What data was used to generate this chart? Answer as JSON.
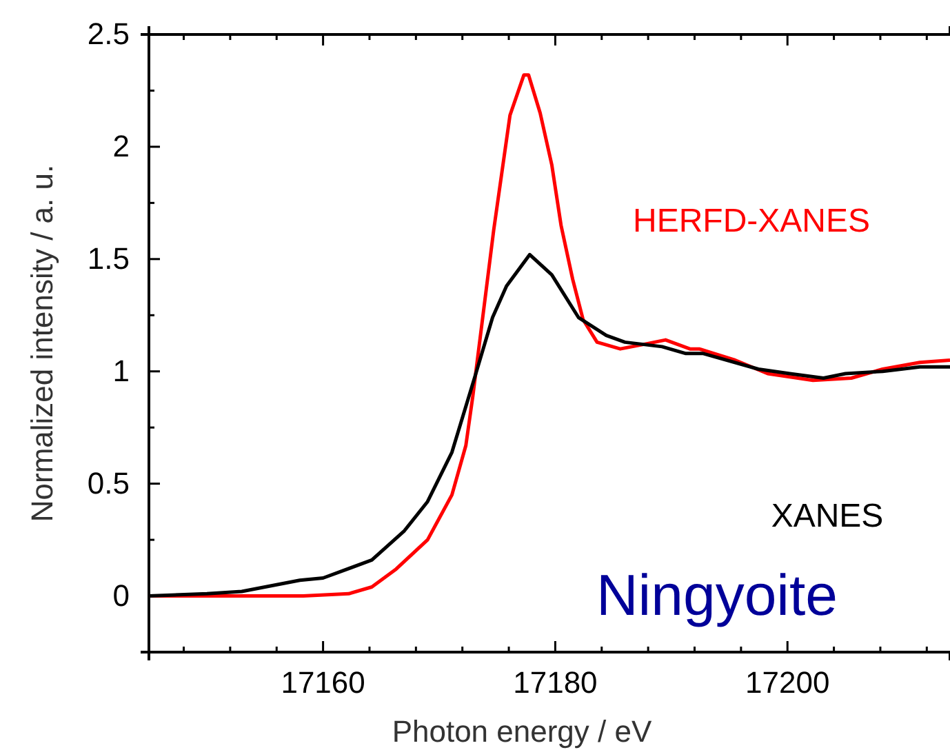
{
  "chart_data": {
    "type": "line",
    "xlabel": "Photon energy / eV",
    "ylabel": "Normalized intensity / a. u.",
    "xlim": [
      17145,
      17214
    ],
    "ylim": [
      -0.25,
      2.5
    ],
    "xticks": [
      {
        "value": 17148,
        "label": null
      },
      {
        "value": 17152,
        "label": null
      },
      {
        "value": 17156,
        "label": null
      },
      17160,
      {
        "value": 17164,
        "label": null
      },
      {
        "value": 17168,
        "label": null
      },
      {
        "value": 17172,
        "label": null
      },
      {
        "value": 17176,
        "label": null
      },
      17180,
      {
        "value": 17184,
        "label": null
      },
      {
        "value": 17188,
        "label": null
      },
      {
        "value": 17192,
        "label": null
      },
      {
        "value": 17196,
        "label": null
      },
      17200,
      {
        "value": 17204,
        "label": null
      },
      {
        "value": 17208,
        "label": null
      },
      {
        "value": 17212,
        "label": null
      }
    ],
    "yticks": [
      {
        "value": -0.25,
        "label": null
      },
      0,
      {
        "value": 0.25,
        "label": null
      },
      0.5,
      {
        "value": 0.75,
        "label": null
      },
      1,
      {
        "value": 1.25,
        "label": null
      },
      1.5,
      {
        "value": 1.75,
        "label": null
      },
      2,
      {
        "value": 2.25,
        "label": null
      },
      2.5
    ],
    "grid": false,
    "marker": "none",
    "line_style": "solid",
    "series": [
      {
        "name": "HERFD-XANES",
        "color": "#ff0000",
        "x": [
          17145,
          17150,
          17155,
          17158.3,
          17162.2,
          17164.2,
          17166.3,
          17169,
          17171.1,
          17172.3,
          17172.9,
          17174.7,
          17176.1,
          17177.3,
          17177.7,
          17178.7,
          17179.7,
          17180.5,
          17181.5,
          17182.4,
          17183.6,
          17185.6,
          17187.6,
          17189.5,
          17191.6,
          17192.4,
          17195.5,
          17198.3,
          17202.2,
          17205.5,
          17208.2,
          17211.4,
          17214
        ],
        "values": [
          0,
          0,
          0,
          0,
          0.01,
          0.04,
          0.12,
          0.25,
          0.45,
          0.67,
          0.89,
          1.63,
          2.14,
          2.32,
          2.32,
          2.15,
          1.92,
          1.65,
          1.41,
          1.23,
          1.13,
          1.1,
          1.12,
          1.14,
          1.1,
          1.1,
          1.05,
          0.99,
          0.96,
          0.97,
          1.01,
          1.04,
          1.05
        ]
      },
      {
        "name": "XANES",
        "color": "#000000",
        "x": [
          17145,
          17150,
          17153,
          17158,
          17160,
          17164.2,
          17167,
          17169,
          17171.1,
          17173.1,
          17174.6,
          17175.8,
          17177.8,
          17179.7,
          17182,
          17184.4,
          17186,
          17189.2,
          17191.2,
          17192.7,
          17197.5,
          17200.2,
          17203.1,
          17205,
          17208.2,
          17211.4,
          17214
        ],
        "values": [
          0,
          0.01,
          0.02,
          0.07,
          0.08,
          0.16,
          0.29,
          0.42,
          0.64,
          0.98,
          1.24,
          1.38,
          1.52,
          1.43,
          1.24,
          1.16,
          1.13,
          1.11,
          1.08,
          1.08,
          1.01,
          0.99,
          0.97,
          0.99,
          1,
          1.02,
          1.02
        ]
      }
    ],
    "annotations": [
      "Ningyoite"
    ]
  }
}
